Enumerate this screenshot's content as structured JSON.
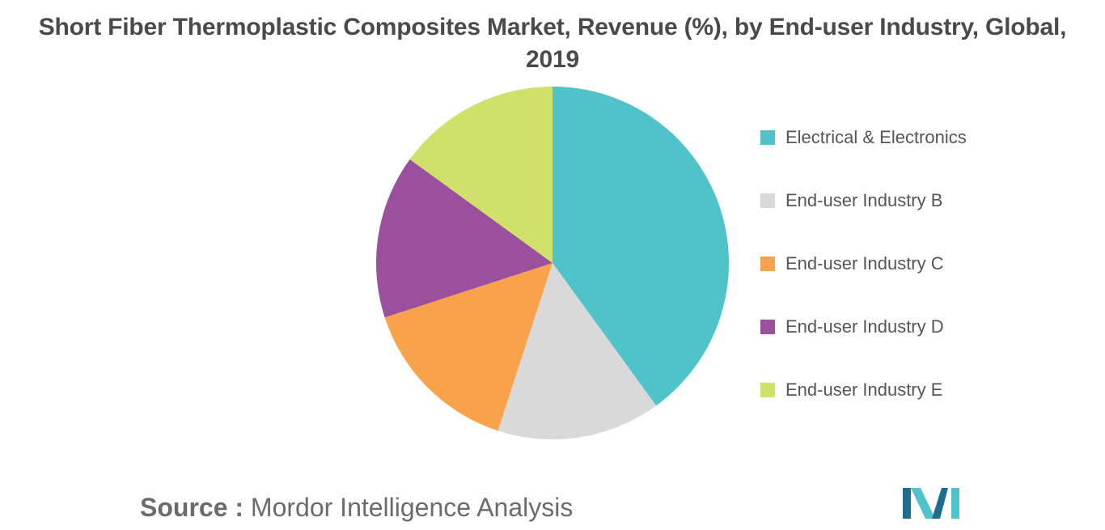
{
  "chart_data": {
    "type": "pie",
    "title": "Short Fiber Thermoplastic Composites Market, Revenue (%), by End-user Industry, Global, 2019",
    "title_lines": [
      "Short Fiber Thermoplastic Composites Market, Revenue (%), by End-user Industry, Global,",
      "2019"
    ],
    "legend_position": "right",
    "categories": [
      "Electrical & Electronics",
      "End-user Industry B",
      "End-user Industry C",
      "End-user Industry D",
      "End-user Industry E"
    ],
    "values": [
      40,
      15,
      15,
      15,
      15
    ],
    "colors": [
      "#4fc3c9",
      "#d9d9d9",
      "#f8a34b",
      "#9b509e",
      "#cfe16a"
    ],
    "start_angle_deg": 0,
    "direction": "clockwise"
  },
  "source": {
    "prefix": "Source :",
    "text": "Mordor Intelligence Analysis"
  },
  "logo": {
    "icon": "mordor-intelligence-logo-icon",
    "colors": [
      "#1d6d8c",
      "#4fc3c9"
    ]
  }
}
